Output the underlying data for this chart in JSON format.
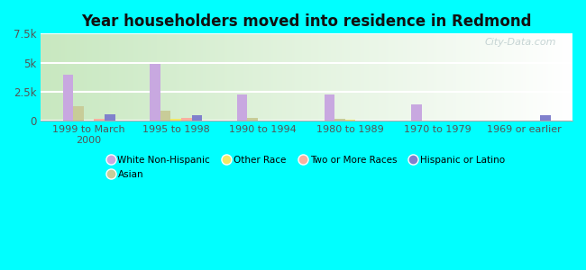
{
  "title": "Year householders moved into residence in Redmond",
  "categories": [
    "1999 to March\n2000",
    "1995 to 1998",
    "1990 to 1994",
    "1980 to 1989",
    "1970 to 1979",
    "1969 or earlier"
  ],
  "series": {
    "White Non-Hispanic": [
      4000,
      4900,
      2300,
      2300,
      1400,
      0
    ],
    "Asian": [
      1300,
      900,
      300,
      200,
      0,
      0
    ],
    "Other Race": [
      50,
      200,
      30,
      100,
      0,
      0
    ],
    "Two or More Races": [
      200,
      300,
      0,
      0,
      0,
      0
    ],
    "Hispanic or Latino": [
      600,
      500,
      0,
      0,
      0,
      500
    ]
  },
  "colors": {
    "White Non-Hispanic": "#c8a8e0",
    "Asian": "#c8cc98",
    "Other Race": "#f0e868",
    "Two or More Races": "#f8b0a0",
    "Hispanic or Latino": "#8080cc"
  },
  "ylim": [
    0,
    7500
  ],
  "yticks": [
    0,
    2500,
    5000,
    7500
  ],
  "ytick_labels": [
    "0",
    "2.5k",
    "5k",
    "7.5k"
  ],
  "outer_bg": "#00ffff",
  "plot_bg_left": "#c8e8c0",
  "plot_bg_right": "#f0f8f0",
  "watermark": "City-Data.com",
  "bar_width": 0.12
}
